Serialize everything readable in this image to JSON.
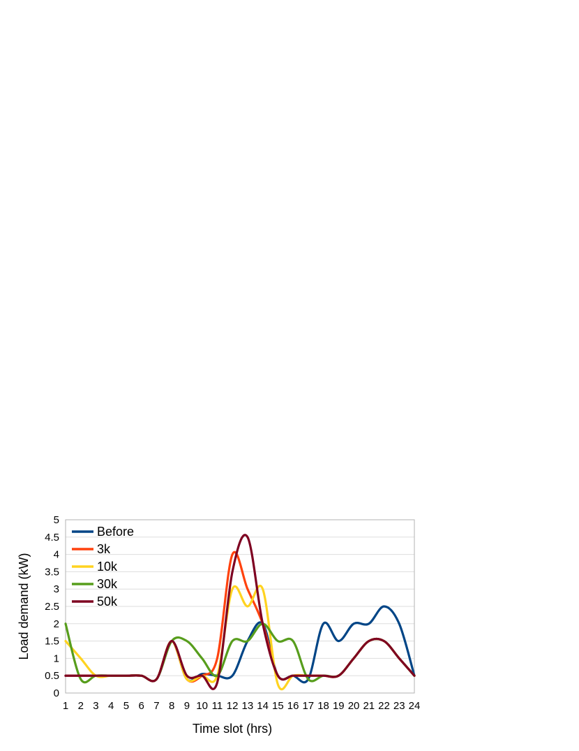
{
  "chart_data": {
    "type": "line",
    "title": "",
    "xlabel": "Time slot (hrs)",
    "ylabel": "Load demand (kW)",
    "x": [
      1,
      2,
      3,
      4,
      5,
      6,
      7,
      8,
      9,
      10,
      11,
      12,
      13,
      14,
      15,
      16,
      17,
      18,
      19,
      20,
      21,
      22,
      23,
      24
    ],
    "x_tick_labels": [
      "1",
      "2",
      "3",
      "4",
      "5",
      "6",
      "7",
      "8",
      "9",
      "10",
      "11",
      "12",
      "13",
      "14",
      "15",
      "16",
      "17",
      "18",
      "19",
      "20",
      "21",
      "22",
      "23",
      "24"
    ],
    "ylim": [
      0,
      5
    ],
    "y_ticks": [
      0,
      0.5,
      1,
      1.5,
      2,
      2.5,
      3,
      3.5,
      4,
      4.5,
      5
    ],
    "y_tick_labels": [
      "0",
      "0.5",
      "1",
      "1.5",
      "2",
      "2.5",
      "3",
      "3.5",
      "4",
      "4.5",
      "5"
    ],
    "grid": true,
    "smooth": true,
    "legend_position": "top-left",
    "series": [
      {
        "name": "Before",
        "color": "#004586",
        "values": [
          0.5,
          0.5,
          0.5,
          0.5,
          0.5,
          0.5,
          0.4,
          1.5,
          0.4,
          0.55,
          0.5,
          0.5,
          1.5,
          2.0,
          0.5,
          0.5,
          0.4,
          2.0,
          1.5,
          2.0,
          2.0,
          2.5,
          2.0,
          0.5
        ]
      },
      {
        "name": "3k",
        "color": "#ff420e",
        "values": [
          0.5,
          0.5,
          0.5,
          0.5,
          0.5,
          0.5,
          0.4,
          1.5,
          0.4,
          0.5,
          1.0,
          4.0,
          3.0,
          2.0,
          0.5,
          0.5,
          0.5,
          0.5,
          0.5,
          1.0,
          1.5,
          1.5,
          1.0,
          0.5
        ]
      },
      {
        "name": "10k",
        "color": "#ffd320",
        "values": [
          1.5,
          1.0,
          0.5,
          0.5,
          0.5,
          0.5,
          0.4,
          1.5,
          0.4,
          0.5,
          0.5,
          3.0,
          2.5,
          3.0,
          0.25,
          0.5,
          0.5,
          0.5,
          0.5,
          1.0,
          1.5,
          1.5,
          1.0,
          0.5
        ]
      },
      {
        "name": "30k",
        "color": "#579d1c",
        "values": [
          2.0,
          0.4,
          0.5,
          0.5,
          0.5,
          0.5,
          0.4,
          1.5,
          1.5,
          1.0,
          0.5,
          1.5,
          1.5,
          2.0,
          1.5,
          1.5,
          0.4,
          0.5,
          0.5,
          1.0,
          1.5,
          1.5,
          1.0,
          0.5
        ]
      },
      {
        "name": "50k",
        "color": "#7e0021",
        "values": [
          0.5,
          0.5,
          0.5,
          0.5,
          0.5,
          0.5,
          0.4,
          1.5,
          0.5,
          0.5,
          0.3,
          3.5,
          4.5,
          2.0,
          0.5,
          0.5,
          0.5,
          0.5,
          0.5,
          1.0,
          1.5,
          1.5,
          1.0,
          0.5
        ]
      }
    ]
  }
}
